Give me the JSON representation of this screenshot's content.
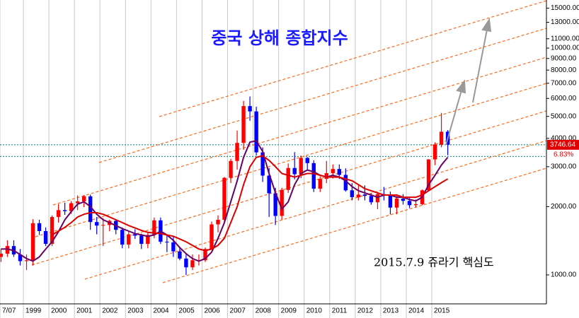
{
  "chart_data": {
    "type": "candlestick",
    "title": "중국 상해 종합지수",
    "annotation": "2015.7.9 쥬라기 핵심도",
    "log_scale": true,
    "xlim": [
      1998.085,
      2019.49
    ],
    "xticks": [
      {
        "value": 1998.085,
        "label": "7/07"
      },
      1999,
      2000,
      2001,
      2002,
      2003,
      2004,
      2005,
      2006,
      2007,
      2008,
      2009,
      2010,
      2011,
      2012,
      2013,
      2014,
      2015
    ],
    "ylim": [
      745,
      16300
    ],
    "yticks": [
      {
        "value": 1000,
        "label": "1000.00"
      },
      {
        "value": 2000,
        "label": "2000.00"
      },
      {
        "value": 3000,
        "label": "3000.00"
      },
      {
        "value": 4000,
        "label": "4000.00"
      },
      {
        "value": 5000,
        "label": "5000.00"
      },
      {
        "value": 6000,
        "label": "6000.00"
      },
      {
        "value": 7000,
        "label": "7000.00"
      },
      {
        "value": 8000,
        "label": "8000.00"
      },
      {
        "value": 9000,
        "label": "9000.00"
      },
      {
        "value": 10000,
        "label": "10000.00"
      },
      {
        "value": 11000,
        "label": "11000.00"
      },
      {
        "value": 13000,
        "label": "13000.00"
      },
      {
        "value": 15000,
        "label": "15000.00"
      }
    ],
    "up_color": "#ff0000",
    "down_color": "#0000ff",
    "x": [
      1998.125,
      1998.375,
      1998.625,
      1998.875,
      1999.125,
      1999.375,
      1999.625,
      1999.875,
      2000.125,
      2000.375,
      2000.625,
      2000.875,
      2001.125,
      2001.375,
      2001.625,
      2001.875,
      2002.125,
      2002.375,
      2002.625,
      2002.875,
      2003.125,
      2003.375,
      2003.625,
      2003.875,
      2004.125,
      2004.375,
      2004.625,
      2004.875,
      2005.125,
      2005.375,
      2005.625,
      2005.875,
      2006.125,
      2006.375,
      2006.625,
      2006.875,
      2007.125,
      2007.375,
      2007.625,
      2007.875,
      2008.125,
      2008.375,
      2008.625,
      2008.875,
      2009.125,
      2009.375,
      2009.625,
      2009.875,
      2010.125,
      2010.375,
      2010.625,
      2010.875,
      2011.125,
      2011.375,
      2011.625,
      2011.875,
      2012.125,
      2012.375,
      2012.625,
      2012.875,
      2013.125,
      2013.375,
      2013.625,
      2013.875,
      2014.125,
      2014.375,
      2014.625,
      2014.875,
      2015.125,
      2015.375,
      2015.625
    ],
    "open": [
      1200,
      1240,
      1340,
      1230,
      1150,
      1160,
      1690,
      1560,
      1370,
      1800,
      1930,
      1910,
      2070,
      2110,
      2220,
      1710,
      1650,
      1660,
      1730,
      1580,
      1360,
      1510,
      1490,
      1370,
      1500,
      1740,
      1400,
      1390,
      1270,
      1180,
      1080,
      1160,
      1160,
      1300,
      1670,
      1750,
      2680,
      3180,
      3820,
      5550,
      5260,
      3470,
      2740,
      2290,
      1820,
      2370,
      2960,
      2780,
      3280,
      3110,
      2400,
      2650,
      2810,
      2930,
      2760,
      2360,
      2200,
      2260,
      2230,
      2090,
      2270,
      2240,
      1980,
      2170,
      2120,
      2030,
      2050,
      2360,
      3230,
      3750,
      4280
    ],
    "high": [
      1300,
      1420,
      1420,
      1300,
      1230,
      1760,
      1750,
      1620,
      1830,
      2050,
      2080,
      2110,
      2240,
      2250,
      2260,
      1800,
      1780,
      1750,
      1760,
      1620,
      1560,
      1590,
      1520,
      1530,
      1790,
      1790,
      1500,
      1480,
      1330,
      1240,
      1230,
      1230,
      1320,
      1720,
      1830,
      2700,
      3250,
      4330,
      5850,
      6120,
      5520,
      3650,
      2960,
      2420,
      2420,
      3100,
      3480,
      3360,
      3310,
      3200,
      2720,
      3180,
      3070,
      3070,
      2950,
      2540,
      2480,
      2480,
      2280,
      2320,
      2440,
      2330,
      2230,
      2270,
      2180,
      2150,
      2380,
      3240,
      3840,
      5180,
      4350
    ],
    "low": [
      1140,
      1200,
      1200,
      1100,
      1050,
      1100,
      1500,
      1340,
      1340,
      1700,
      1840,
      1860,
      1930,
      1990,
      1580,
      1510,
      1340,
      1560,
      1510,
      1310,
      1310,
      1440,
      1300,
      1310,
      1450,
      1370,
      1260,
      1200,
      1160,
      1000,
      1050,
      1100,
      1140,
      1290,
      1540,
      1710,
      2540,
      2910,
      3560,
      4780,
      3360,
      2570,
      1800,
      1660,
      1750,
      2300,
      2640,
      2670,
      2890,
      2320,
      2320,
      2540,
      2660,
      2650,
      2330,
      2130,
      2130,
      2130,
      2040,
      1950,
      2130,
      1850,
      1850,
      2040,
      1970,
      1980,
      2030,
      2340,
      3050,
      3650,
      3370
    ],
    "close": [
      1240,
      1340,
      1230,
      1150,
      1160,
      1690,
      1560,
      1370,
      1800,
      1930,
      1910,
      2070,
      2110,
      2220,
      1710,
      1650,
      1660,
      1730,
      1580,
      1360,
      1510,
      1490,
      1370,
      1500,
      1740,
      1400,
      1390,
      1270,
      1180,
      1080,
      1160,
      1160,
      1300,
      1670,
      1750,
      2680,
      3180,
      3820,
      5550,
      5260,
      3470,
      2740,
      2290,
      1820,
      2370,
      2960,
      2780,
      3280,
      3110,
      2400,
      2650,
      2810,
      2930,
      2760,
      2360,
      2200,
      2260,
      2230,
      2090,
      2270,
      2240,
      1980,
      2170,
      2120,
      2030,
      2050,
      2360,
      3230,
      3750,
      4280,
      3750
    ],
    "moving_averages": [
      {
        "color": "#660066",
        "values": [
          1300,
          1300,
          1280,
          1230,
          1180,
          1150,
          1200,
          1300,
          1400,
          1550,
          1750,
          1900,
          2050,
          2100,
          2000,
          1850,
          1750,
          1700,
          1650,
          1600,
          1560,
          1520,
          1500,
          1480,
          1500,
          1560,
          1500,
          1420,
          1320,
          1240,
          1180,
          1150,
          1180,
          1260,
          1450,
          1700,
          2100,
          2600,
          3300,
          3850,
          3900,
          3500,
          2800,
          2300,
          1950,
          2100,
          2500,
          2800,
          2900,
          2850,
          2750,
          2700,
          2750,
          2700,
          2600,
          2450,
          2350,
          2300,
          2250,
          2200,
          2250,
          2250,
          2200,
          2200,
          2150,
          2120,
          2200,
          2500,
          2750,
          3050,
          3300
        ]
      },
      {
        "color": "#dd0000",
        "values": [
          null,
          null,
          null,
          null,
          null,
          null,
          null,
          null,
          1500,
          1560,
          1620,
          1700,
          1800,
          1850,
          1880,
          1880,
          1850,
          1800,
          1750,
          1700,
          1650,
          1610,
          1570,
          1540,
          1530,
          1520,
          1500,
          1480,
          1440,
          1400,
          1350,
          1300,
          1280,
          1300,
          1350,
          1450,
          1700,
          2000,
          2500,
          3000,
          3300,
          3350,
          3200,
          3000,
          2800,
          2750,
          2700,
          2750,
          2800,
          2800,
          2750,
          2700,
          2700,
          2700,
          2650,
          2600,
          2500,
          2400,
          2350,
          2300,
          2250,
          2250,
          2250,
          2200,
          2200,
          2200,
          2250,
          2350,
          2450,
          2550,
          2650
        ]
      }
    ],
    "last_price": {
      "value": 3746.64,
      "label": "3746.64"
    },
    "change_label": "6.83%",
    "hlines": [
      3746.64,
      3330
    ],
    "hline_color": "#008080"
  }
}
